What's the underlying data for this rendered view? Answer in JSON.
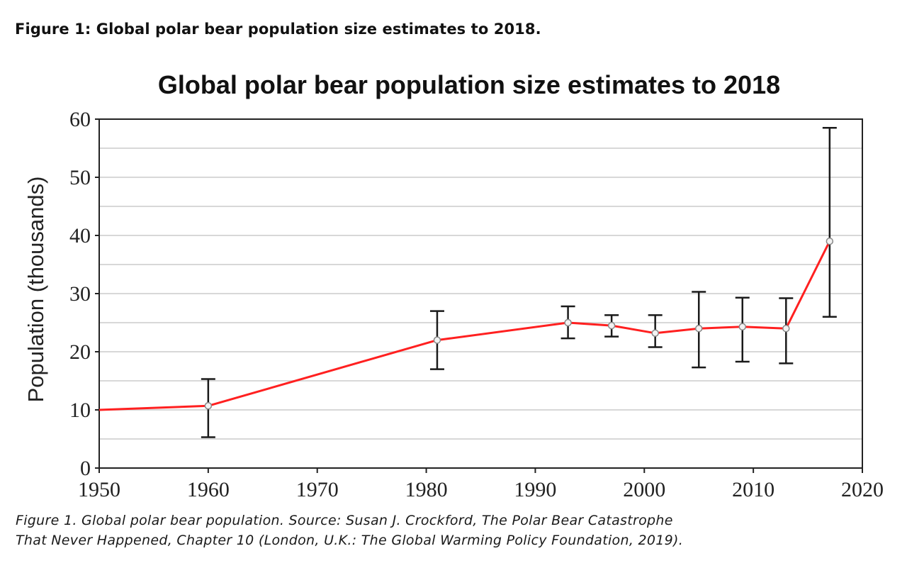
{
  "figure_heading": "Figure 1: Global polar bear population size estimates to 2018.",
  "caption": {
    "line1": "Figure 1. Global polar bear population. Source: Susan J. Crockford, The Polar Bear Catastrophe",
    "line2": "That Never Happened, Chapter 10 (London, U.K.: The Global Warming Policy Foundation, 2019)."
  },
  "colors": {
    "line": "#ff2020",
    "error_bar": "#1a1a1a",
    "grid": "#d8d8d8",
    "axis": "#222222"
  },
  "chart_data": {
    "type": "line",
    "title": "Global polar bear population size estimates to 2018",
    "xlabel": "",
    "ylabel": "Population (thousands)",
    "xlim": [
      1950,
      2020
    ],
    "ylim": [
      0,
      60
    ],
    "x_ticks": [
      1950,
      1960,
      1970,
      1980,
      1990,
      2000,
      2010,
      2020
    ],
    "y_ticks": [
      0,
      10,
      20,
      30,
      40,
      50,
      60
    ],
    "grid": {
      "horizontal": true,
      "vertical": false,
      "minor_y_step": 5
    },
    "series": [
      {
        "x": [
          1950,
          1960,
          1981,
          1993,
          1997,
          2001,
          2005,
          2009,
          2013,
          2017
        ],
        "y": [
          10,
          10.7,
          22,
          25,
          24.5,
          23.2,
          24,
          24.3,
          24,
          39
        ],
        "error_low": [
          null,
          5.3,
          17,
          22.3,
          22.6,
          20.8,
          17.3,
          18.3,
          18,
          26
        ],
        "error_high": [
          null,
          15.3,
          27,
          27.8,
          26.3,
          26.3,
          30.3,
          29.3,
          29.2,
          58.5
        ]
      }
    ]
  }
}
